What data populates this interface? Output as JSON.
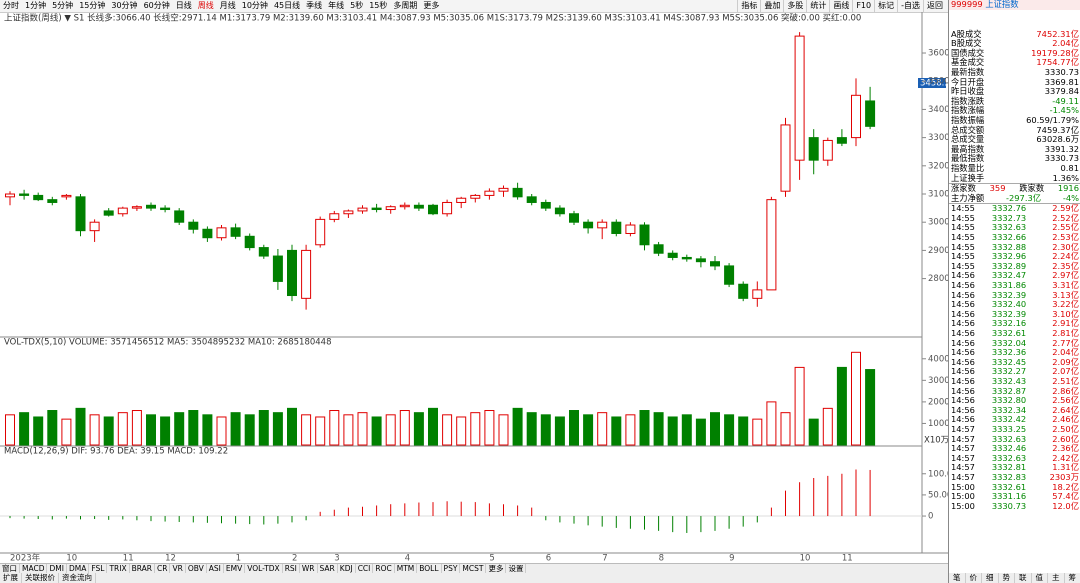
{
  "toolbar": {
    "tabs": [
      "分时",
      "1分钟",
      "5分钟",
      "15分钟",
      "30分钟",
      "60分钟",
      "日线",
      "周线",
      "月线",
      "10分钟",
      "45日线",
      "季线",
      "年线",
      "5秒",
      "15秒",
      "多周期",
      "更多"
    ],
    "right": [
      "指标",
      "叠加",
      "多股",
      "统计",
      "画线",
      "F10",
      "标记",
      "-自选",
      "返回"
    ]
  },
  "headers": {
    "price": "上证指数(周线) ▼ S1 长线多:3066.40 长线空:2971.14 M1:3173.79 M2:3139.60 M3:3103.41 M4:3087.93 M5:3035.06 M1S:3173.79 M2S:3139.60 M3S:3103.41 M4S:3087.93 M5S:3035.06 突破:0.00 买红:0.00",
    "volume": "VOL-TDX(5,10) VOLUME: 3571456512 MA5: 3504895232 MA10: 2685180448",
    "macd": "MACD(12,26,9) DIF: 93.76 DEA: 39.15 MACD: 109.22",
    "vol_unit": "X10万",
    "price_box": "3458.5"
  },
  "chart_data": {
    "type": "candlestick",
    "title": "上证指数(周线)",
    "up": "#e00000",
    "down": "#008000",
    "categories": [
      "2023年",
      null,
      null,
      null,
      "10",
      null,
      null,
      null,
      "11",
      null,
      null,
      "12",
      null,
      null,
      null,
      null,
      "1",
      null,
      null,
      null,
      "2",
      null,
      null,
      "3",
      null,
      null,
      null,
      null,
      "4",
      null,
      null,
      null,
      null,
      null,
      "5",
      null,
      null,
      null,
      "6",
      null,
      null,
      null,
      "7",
      null,
      null,
      null,
      "8",
      null,
      null,
      null,
      null,
      "9",
      null,
      null,
      null,
      null,
      "10",
      null,
      null,
      "11",
      null,
      null
    ],
    "candles": [
      [
        3090,
        3110,
        3060,
        3100
      ],
      [
        3100,
        3115,
        3080,
        3095
      ],
      [
        3095,
        3105,
        3075,
        3080
      ],
      [
        3080,
        3090,
        3060,
        3070
      ],
      [
        3090,
        3100,
        3080,
        3095
      ],
      [
        3090,
        3100,
        2950,
        2970
      ],
      [
        2970,
        3010,
        2930,
        3000
      ],
      [
        3040,
        3050,
        3020,
        3025
      ],
      [
        3030,
        3055,
        3020,
        3050
      ],
      [
        3050,
        3060,
        3040,
        3055
      ],
      [
        3060,
        3070,
        3040,
        3050
      ],
      [
        3050,
        3060,
        3035,
        3045
      ],
      [
        3040,
        3050,
        2990,
        3000
      ],
      [
        3000,
        3010,
        2960,
        2975
      ],
      [
        2975,
        2985,
        2930,
        2945
      ],
      [
        2945,
        2990,
        2935,
        2980
      ],
      [
        2980,
        2995,
        2940,
        2950
      ],
      [
        2950,
        2960,
        2900,
        2910
      ],
      [
        2910,
        2920,
        2870,
        2880
      ],
      [
        2880,
        2905,
        2760,
        2790
      ],
      [
        2900,
        2920,
        2720,
        2740
      ],
      [
        2730,
        2920,
        2690,
        2900
      ],
      [
        2920,
        3020,
        2910,
        3010
      ],
      [
        3010,
        3040,
        3000,
        3030
      ],
      [
        3030,
        3045,
        3015,
        3040
      ],
      [
        3040,
        3060,
        3030,
        3050
      ],
      [
        3050,
        3065,
        3035,
        3045
      ],
      [
        3045,
        3060,
        3030,
        3055
      ],
      [
        3055,
        3070,
        3045,
        3060
      ],
      [
        3060,
        3070,
        3040,
        3050
      ],
      [
        3060,
        3065,
        3025,
        3030
      ],
      [
        3030,
        3080,
        3020,
        3070
      ],
      [
        3070,
        3090,
        3050,
        3085
      ],
      [
        3085,
        3100,
        3070,
        3095
      ],
      [
        3095,
        3120,
        3080,
        3110
      ],
      [
        3110,
        3130,
        3090,
        3120
      ],
      [
        3120,
        3140,
        3080,
        3090
      ],
      [
        3090,
        3100,
        3060,
        3070
      ],
      [
        3070,
        3080,
        3040,
        3050
      ],
      [
        3050,
        3060,
        3020,
        3030
      ],
      [
        3030,
        3040,
        2990,
        3000
      ],
      [
        3000,
        3010,
        2960,
        2980
      ],
      [
        2980,
        3010,
        2940,
        3000
      ],
      [
        3000,
        3010,
        2950,
        2960
      ],
      [
        2960,
        3000,
        2950,
        2990
      ],
      [
        2990,
        3000,
        2900,
        2920
      ],
      [
        2920,
        2930,
        2880,
        2890
      ],
      [
        2890,
        2900,
        2865,
        2875
      ],
      [
        2875,
        2885,
        2860,
        2870
      ],
      [
        2870,
        2880,
        2840,
        2860
      ],
      [
        2860,
        2880,
        2830,
        2845
      ],
      [
        2845,
        2855,
        2770,
        2780
      ],
      [
        2780,
        2790,
        2720,
        2730
      ],
      [
        2730,
        2790,
        2700,
        2760
      ],
      [
        2760,
        3090,
        2760,
        3080
      ],
      [
        3110,
        3370,
        3090,
        3345
      ],
      [
        3220,
        3674,
        3150,
        3660
      ],
      [
        3300,
        3330,
        3170,
        3220
      ],
      [
        3220,
        3300,
        3200,
        3290
      ],
      [
        3300,
        3330,
        3270,
        3280
      ],
      [
        3300,
        3510,
        3270,
        3450
      ],
      [
        3430,
        3480,
        3330,
        3340
      ]
    ],
    "ylim": [
      2600,
      3710
    ],
    "yticks": [
      2800,
      2900,
      3000,
      3100,
      3200,
      3300,
      3400,
      3500,
      3600
    ],
    "volumes": [
      14000,
      15000,
      13000,
      16000,
      12000,
      17000,
      14000,
      13000,
      15000,
      16000,
      14000,
      13000,
      15000,
      16000,
      14000,
      13000,
      15000,
      14000,
      16000,
      15000,
      17000,
      14000,
      13000,
      16000,
      14000,
      15000,
      13000,
      14000,
      16000,
      15000,
      17000,
      14000,
      13000,
      15000,
      16000,
      14000,
      17000,
      15000,
      14000,
      13000,
      16000,
      14000,
      15000,
      13000,
      14000,
      16000,
      15000,
      13000,
      14000,
      12000,
      15000,
      14000,
      13000,
      12000,
      20000,
      15000,
      36000,
      12000,
      17000,
      36000,
      43000,
      35000
    ],
    "vol_ylim": [
      0,
      45000
    ],
    "vol_yticks": [
      10000,
      20000,
      30000,
      40000
    ],
    "macd": [
      -5,
      -6,
      -7,
      -8,
      -6,
      -8,
      -7,
      -9,
      -8,
      -10,
      -12,
      -13,
      -14,
      -15,
      -16,
      -17,
      -18,
      -19,
      -20,
      -18,
      -15,
      -10,
      10,
      15,
      20,
      22,
      25,
      28,
      30,
      32,
      33,
      35,
      34,
      33,
      30,
      28,
      25,
      20,
      -10,
      -15,
      -18,
      -22,
      -25,
      -28,
      -30,
      -32,
      -35,
      -38,
      -40,
      -38,
      -35,
      -30,
      -25,
      -15,
      20,
      60,
      80,
      90,
      95,
      100,
      110,
      109
    ],
    "macd_ylim": [
      -85,
      142
    ],
    "macd_yticks": [
      0,
      {
        "value": 50,
        "label": "50.00"
      },
      {
        "value": 100,
        "label": "100.0"
      }
    ]
  },
  "quote": {
    "code": "999999",
    "name": "上证指数",
    "summary": [
      [
        "A股成交",
        "7452.31亿"
      ],
      [
        "B股成交",
        "2.04亿"
      ],
      [
        "国债成交",
        "19179.28亿"
      ],
      [
        "基金成交",
        "1754.77亿"
      ]
    ],
    "stats": [
      [
        "最新指数",
        "3330.73"
      ],
      [
        "今日开盘",
        "3369.81"
      ],
      [
        "昨日收盘",
        "3379.84"
      ],
      [
        "指数涨跌",
        "-49.11"
      ],
      [
        "指数涨幅",
        "-1.45%"
      ],
      [
        "指数振幅",
        "60.59/1.79%"
      ],
      [
        "总成交额",
        "7459.37亿"
      ],
      [
        "总成交量",
        "63028.6万"
      ],
      [
        "最高指数",
        "3391.32"
      ],
      [
        "最低指数",
        "3330.73"
      ],
      [
        "指数量比",
        "0.81"
      ],
      [
        "上证换手",
        "1.36%"
      ]
    ],
    "breadth": [
      "涨家数",
      "359",
      "跌家数",
      "1916"
    ],
    "flow": [
      "主力净额",
      "-297.3亿",
      "-4%"
    ]
  },
  "ticks": [
    [
      "14:55",
      "3332.76",
      "2.59亿"
    ],
    [
      "14:55",
      "3332.73",
      "2.52亿"
    ],
    [
      "14:55",
      "3332.63",
      "2.55亿"
    ],
    [
      "14:55",
      "3332.66",
      "2.53亿"
    ],
    [
      "14:55",
      "3332.88",
      "2.30亿"
    ],
    [
      "14:55",
      "3332.96",
      "2.24亿"
    ],
    [
      "14:55",
      "3332.89",
      "2.35亿"
    ],
    [
      "14:56",
      "3332.47",
      "2.97亿"
    ],
    [
      "14:56",
      "3331.86",
      "3.31亿"
    ],
    [
      "14:56",
      "3332.39",
      "3.13亿"
    ],
    [
      "14:56",
      "3332.40",
      "3.22亿"
    ],
    [
      "14:56",
      "3332.39",
      "3.10亿"
    ],
    [
      "14:56",
      "3332.16",
      "2.91亿"
    ],
    [
      "14:56",
      "3332.61",
      "2.81亿"
    ],
    [
      "14:56",
      "3332.04",
      "2.77亿"
    ],
    [
      "14:56",
      "3332.36",
      "2.04亿"
    ],
    [
      "14:56",
      "3332.45",
      "2.09亿"
    ],
    [
      "14:56",
      "3332.27",
      "2.07亿"
    ],
    [
      "14:56",
      "3332.43",
      "2.51亿"
    ],
    [
      "14:56",
      "3332.87",
      "2.86亿"
    ],
    [
      "14:56",
      "3332.80",
      "2.56亿"
    ],
    [
      "14:56",
      "3332.34",
      "2.64亿"
    ],
    [
      "14:56",
      "3332.42",
      "2.46亿"
    ],
    [
      "14:57",
      "3333.25",
      "2.50亿"
    ],
    [
      "14:57",
      "3332.63",
      "2.60亿"
    ],
    [
      "14:57",
      "3332.46",
      "2.36亿"
    ],
    [
      "14:57",
      "3332.63",
      "2.42亿"
    ],
    [
      "14:57",
      "3332.81",
      "1.31亿"
    ],
    [
      "14:57",
      "3332.83",
      "2303万"
    ],
    [
      "15:00",
      "3332.61",
      "18.2亿"
    ],
    [
      "15:00",
      "3331.16",
      "57.4亿"
    ],
    [
      "15:00",
      "3330.73",
      "12.0亿"
    ]
  ],
  "tabs": [
    "窗口",
    "MACD",
    "DMI",
    "DMA",
    "FSL",
    "TRIX",
    "BRAR",
    "CR",
    "VR",
    "OBV",
    "ASI",
    "EMV",
    "VOL-TDX",
    "RSI",
    "WR",
    "SAR",
    "KDJ",
    "CCI",
    "ROC",
    "MTM",
    "BOLL",
    "PSY",
    "MCST",
    "更多",
    "设置"
  ],
  "bottom": [
    "扩展",
    "关联报价",
    "资金流向"
  ],
  "right_tabs": [
    "笔",
    "价",
    "细",
    "势",
    "联",
    "值",
    "主",
    "筹"
  ]
}
